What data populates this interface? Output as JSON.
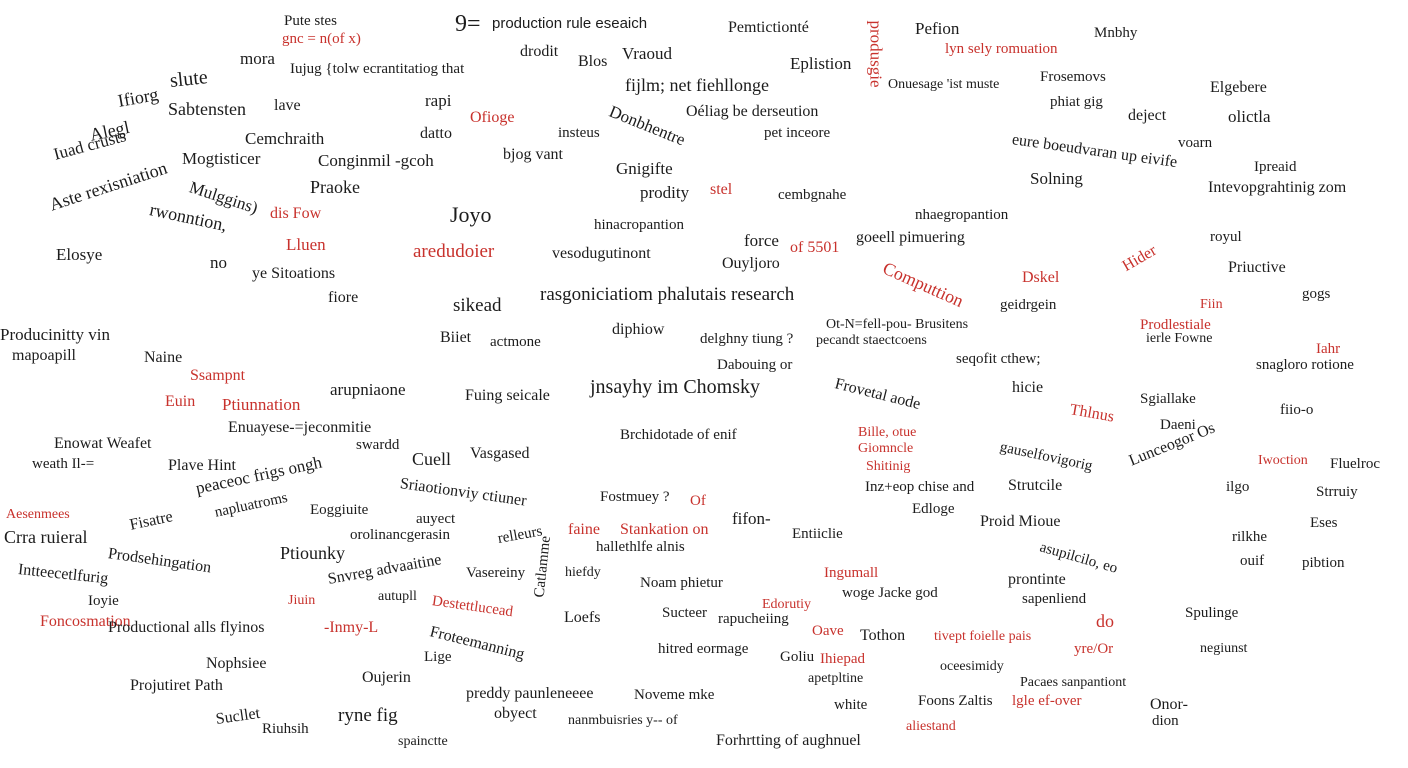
{
  "colors": {
    "ink": "#1c1c1c",
    "accent": "#c8322d",
    "background": "#ffffff"
  },
  "words": [
    "Pute stes",
    "gnc = n(of x)",
    "9=",
    "production rule eseaich",
    "Pemtictionté",
    "Pefion",
    "Mnbhy",
    "mora",
    "Iujug {tolw ecrantitatiog that",
    "drodit",
    "Blos",
    "Vraoud",
    "Eplistion",
    "lyn sely romuation",
    "slute",
    "rapi",
    "fijlm; net fiehllonge",
    "Onuesage 'ist muste",
    "Frosemovs",
    "Elgebere",
    "Ifiorg",
    "Sabtensten",
    "lave",
    "Ofioge",
    "Donbhentre",
    "Oéliag be derseution",
    "pet inceore",
    "phiat gig",
    "deject",
    "olictla",
    "Alegl",
    "Iuad crusts",
    "Cemchraith",
    "datto",
    "insteus",
    "eure boeudvaran up eivife",
    "voarn",
    "Mogtisticer",
    "Conginmil -gcoh",
    "bjog vant",
    "Gnigifte",
    "cembgnahe",
    "Aste rexisniation",
    "Mulggins)",
    "Praoke",
    "Joyo",
    "hinacropantion",
    "prodity",
    "stel",
    "Solning",
    "Ipreaid",
    "Intevopgrahtinig zom",
    "rwonntion,",
    "dis Fow",
    "nhaegropantion",
    "goeell pimuering",
    "Elosye",
    "no",
    "Lluen",
    "aredudoier",
    "vesodugutinont",
    "force",
    "of 5501",
    "produsgie",
    "Computtion",
    "royul",
    "ye Sitoations",
    "Ouyljoro",
    "Dskel",
    "Priuctive",
    "Hider",
    "fiore",
    "sikead",
    "rasgoniciatiom phalutais research",
    "geidrgein",
    "gogs",
    "Producinitty vin",
    "Biiet",
    "actmone",
    "diphiow",
    "delghny tiung ?",
    "Ot-N=fell-pou- Brusitens",
    "pecandt staectcoens",
    "Fiin",
    "Prodlestiale",
    "ierle Fowne",
    "Iahr",
    "mapoapill",
    "Naine",
    "Ssampnt",
    "Dabouing or",
    "seqofit cthew;",
    "snagloro rotione",
    "Euin",
    "Ptiunnation",
    "arupniaone",
    "Fuing seicale",
    "jnsayhy im Chomsky",
    "Frovetal aode",
    "hicie",
    "Sgiallake",
    "Thlnus",
    "Daeni",
    "fiio-o",
    "Enowat Weafet",
    "Enuayese-=jeconmitie",
    "swardd",
    "Vasgased",
    "Brchidotade of enif",
    "Bille, otue",
    "Giomncle",
    "gauselfovigorig",
    "Lunceogor Os",
    "Iwoction",
    "Fluelroc",
    "weath Il-=",
    "Plave Hint",
    "Cuell",
    "Sriaotionviy ctiuner",
    "Fostmuey ?",
    "Of",
    "Shitinig",
    "Inz+eop chise and",
    "Strutcile",
    "ilgo",
    "Strruiy",
    "Aesenmees",
    "peaceoc frigs ongh",
    "Fisatre",
    "napluatroms",
    "Eoggiuite",
    "Crra ruieral",
    "auyect",
    "orolinancgerasin",
    "relleurs",
    "faine",
    "Stankation on",
    "hallethlfe alnis",
    "fifon-",
    "Entiiclie",
    "Edloge",
    "Proid Mioue",
    "asupilcilo, eo",
    "Eses",
    "rilkhe",
    "ouif",
    "pibtion",
    "Prodsehingation",
    "Ptiounky",
    "Vasereiny",
    "Noam phietur",
    "Ingumall",
    "woge Jacke god",
    "prontinte",
    "Intteecetlfurig",
    "Catlamme",
    "hiefdy",
    "Sucteer",
    "Edorutiy",
    "rapucheiing",
    "sapenliend",
    "Spulinge",
    "Ioyie",
    "Jiuin",
    "Snvreg advaaitine",
    "autupll",
    "Destettlucead",
    "Loefs",
    "Oave",
    "Tothon",
    "tivept foielle pais",
    "do",
    "yre/Or",
    "negiunst",
    "Foncosmation",
    "Froteemanning",
    "Productional alls flyinos",
    "-Inmy-L",
    "hitred eormage",
    "Goliu",
    "Ihiepad",
    "apetpltine",
    "oceesimidy",
    "Nophsiee",
    "Lige",
    "Pacaes sanpantiont",
    "Projutiret Path",
    "Oujerin",
    "preddy paunleneeee",
    "Noveme mke",
    "Foons Zaltis",
    "lgle ef-over",
    "Onor-",
    "dion",
    "Sucllet",
    "obyect",
    "nanmbuisries y-- of",
    "white",
    "Riuhsih",
    "ryne fig",
    "spainctte",
    "Forhrtting of aughnuel",
    "aliestand"
  ]
}
